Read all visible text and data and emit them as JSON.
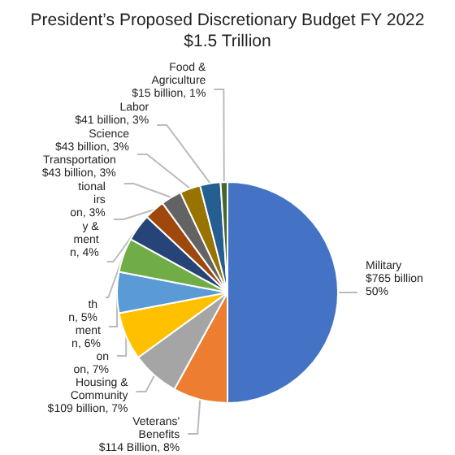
{
  "chart_data": {
    "type": "pie",
    "title": "President’s Proposed Discretionary Budget FY 2022",
    "subtitle": "$1.5 Trillion",
    "categories": [
      "Military",
      "Veterans'\nBenefits",
      "Housing &\nCommunity",
      "on",
      "ment",
      "th",
      "y &\nment",
      "tional\nirs",
      "Transportation",
      "Science",
      "Labor",
      "Food &\nAgriculture"
    ],
    "values": [
      50,
      8,
      7,
      7,
      6,
      5,
      4,
      3,
      3,
      3,
      3,
      1
    ],
    "value_labels": [
      "$765 billion\n50%",
      "$114 Billion, 8%",
      "$109 billion, 7%",
      "on, 7%",
      "n, 6%",
      "n, 5%",
      "n, 4%",
      "on, 3%",
      "$43 billion, 3%",
      "$43 billion, 3%",
      "$41 billion, 3%",
      "$15 billion, 1%"
    ],
    "colors": [
      "#4472c4",
      "#ed7d31",
      "#a5a5a5",
      "#ffc000",
      "#5b9bd5",
      "#70ad47",
      "#264478",
      "#9e480e",
      "#636363",
      "#997300",
      "#255e91",
      "#43682b"
    ],
    "legend": false
  }
}
